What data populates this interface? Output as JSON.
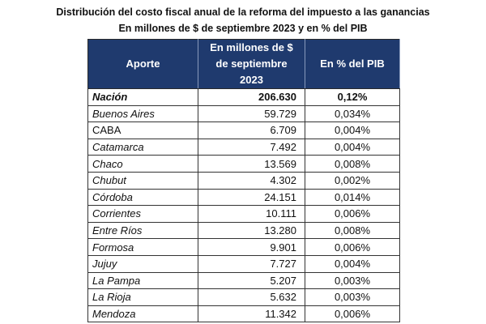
{
  "title": "Distribución del costo fiscal anual de la reforma del impuesto a las ganancias",
  "subtitle": "En millones de $ de septiembre 2023 y en % del PIB",
  "header_color": "#1f3a6e",
  "columns": [
    "Aporte",
    "En millones de  $ de septiembre 2023",
    "En % del PIB"
  ],
  "rows": [
    {
      "name": "Nación",
      "millones": "206.630",
      "pib": "0,12%"
    },
    {
      "name": "Buenos Aires",
      "millones": "59.729",
      "pib": "0,034%"
    },
    {
      "name": "CABA",
      "millones": "6.709",
      "pib": "0,004%"
    },
    {
      "name": "Catamarca",
      "millones": "7.492",
      "pib": "0,004%"
    },
    {
      "name": "Chaco",
      "millones": "13.569",
      "pib": "0,008%"
    },
    {
      "name": "Chubut",
      "millones": "4.302",
      "pib": "0,002%"
    },
    {
      "name": "Córdoba",
      "millones": "24.151",
      "pib": "0,014%"
    },
    {
      "name": "Corrientes",
      "millones": "10.111",
      "pib": "0,006%"
    },
    {
      "name": "Entre Ríos",
      "millones": "13.280",
      "pib": "0,008%"
    },
    {
      "name": "Formosa",
      "millones": "9.901",
      "pib": "0,006%"
    },
    {
      "name": "Jujuy",
      "millones": "7.727",
      "pib": "0,004%"
    },
    {
      "name": "La Pampa",
      "millones": "5.207",
      "pib": "0,003%"
    },
    {
      "name": "La Rioja",
      "millones": "5.632",
      "pib": "0,003%"
    },
    {
      "name": "Mendoza",
      "millones": "11.342",
      "pib": "0,006%"
    }
  ]
}
